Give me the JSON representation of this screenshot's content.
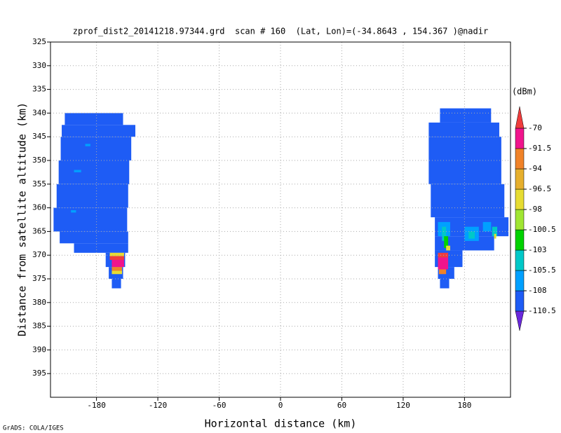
{
  "chart_data": {
    "type": "heatmap",
    "title": "zprof_dist2_20141218.97344.grd  scan # 160  (Lat, Lon)=(-34.8643 , 154.367 )@nadir",
    "x_label": "Horizontal distance (km)",
    "y_label": "Distance from satellite altitude (km)",
    "credit": "GrADS: COLA/IGES",
    "xlim": [
      -225,
      225
    ],
    "xticks": [
      -180,
      -120,
      -60,
      0,
      60,
      120,
      180
    ],
    "ylim": [
      400,
      325
    ],
    "yticks": [
      325,
      330,
      335,
      340,
      345,
      350,
      355,
      360,
      365,
      370,
      375,
      380,
      385,
      390,
      395
    ],
    "grid": true,
    "colorbar": {
      "title": "(dBm)",
      "levels": [
        -110.5,
        -108,
        -105.5,
        -103,
        -100.5,
        -98,
        -96.5,
        -94,
        -91.5,
        -70
      ],
      "colors": [
        "#6a28dc",
        "#1e5cf5",
        "#00a0ff",
        "#00c8c8",
        "#00d200",
        "#a0e632",
        "#e6dc32",
        "#e6af2d",
        "#f08228",
        "#f0148c",
        "#f03c3c"
      ]
    },
    "cells": [
      [
        -211,
        -154,
        340,
        342.5,
        -109
      ],
      [
        -214,
        -142,
        342.5,
        345,
        -109
      ],
      [
        -215,
        -146,
        345,
        350,
        -109
      ],
      [
        -217,
        -148,
        350,
        355,
        -109
      ],
      [
        -219,
        -149,
        355,
        360,
        -109
      ],
      [
        -222,
        -150,
        360,
        365,
        -109
      ],
      [
        -216,
        -149,
        365,
        367.5,
        -109
      ],
      [
        -202,
        -149,
        367.5,
        369.5,
        -109
      ],
      [
        -171,
        -152,
        369.5,
        372.5,
        -109
      ],
      [
        -168,
        -154,
        372.5,
        375,
        -109
      ],
      [
        -165,
        -156,
        375,
        377,
        -109
      ],
      [
        -191,
        -186,
        346.5,
        347,
        -107
      ],
      [
        -202,
        -195,
        352,
        352.5,
        -107
      ],
      [
        -205,
        -200,
        360.5,
        361,
        -107
      ],
      [
        -167,
        -153,
        369.5,
        370.2,
        -97
      ],
      [
        -167,
        -153,
        370.2,
        371,
        -68
      ],
      [
        -165,
        -153,
        371,
        372.5,
        -85
      ],
      [
        -165,
        -155,
        372.5,
        373.3,
        -93
      ],
      [
        -165,
        -155,
        373.3,
        374,
        -97
      ],
      [
        156,
        206,
        339,
        342,
        -109
      ],
      [
        145,
        214,
        342,
        345,
        -109
      ],
      [
        145,
        216,
        345,
        355,
        -109
      ],
      [
        147,
        219,
        355,
        362,
        -109
      ],
      [
        151,
        223,
        362,
        366,
        -109
      ],
      [
        151,
        209,
        366,
        369,
        -109
      ],
      [
        151,
        178,
        369,
        372.5,
        -109
      ],
      [
        154,
        170,
        372.5,
        375,
        -109
      ],
      [
        156,
        165,
        375,
        377,
        -109
      ],
      [
        154,
        166,
        363,
        366,
        -107
      ],
      [
        158,
        162,
        364,
        367,
        -104
      ],
      [
        160,
        164,
        366,
        368.5,
        -102
      ],
      [
        162,
        166,
        368,
        369,
        -97
      ],
      [
        154,
        164,
        369.5,
        370.5,
        -68
      ],
      [
        154,
        164,
        370.5,
        373,
        -85
      ],
      [
        155,
        162,
        373,
        374,
        -93
      ],
      [
        180,
        194,
        364,
        367,
        -107
      ],
      [
        184,
        190,
        365,
        366.5,
        -104
      ],
      [
        198,
        206,
        363,
        365,
        -107
      ],
      [
        207,
        212,
        364,
        366,
        -104
      ],
      [
        209,
        211,
        365.5,
        366.5,
        -97
      ]
    ]
  }
}
